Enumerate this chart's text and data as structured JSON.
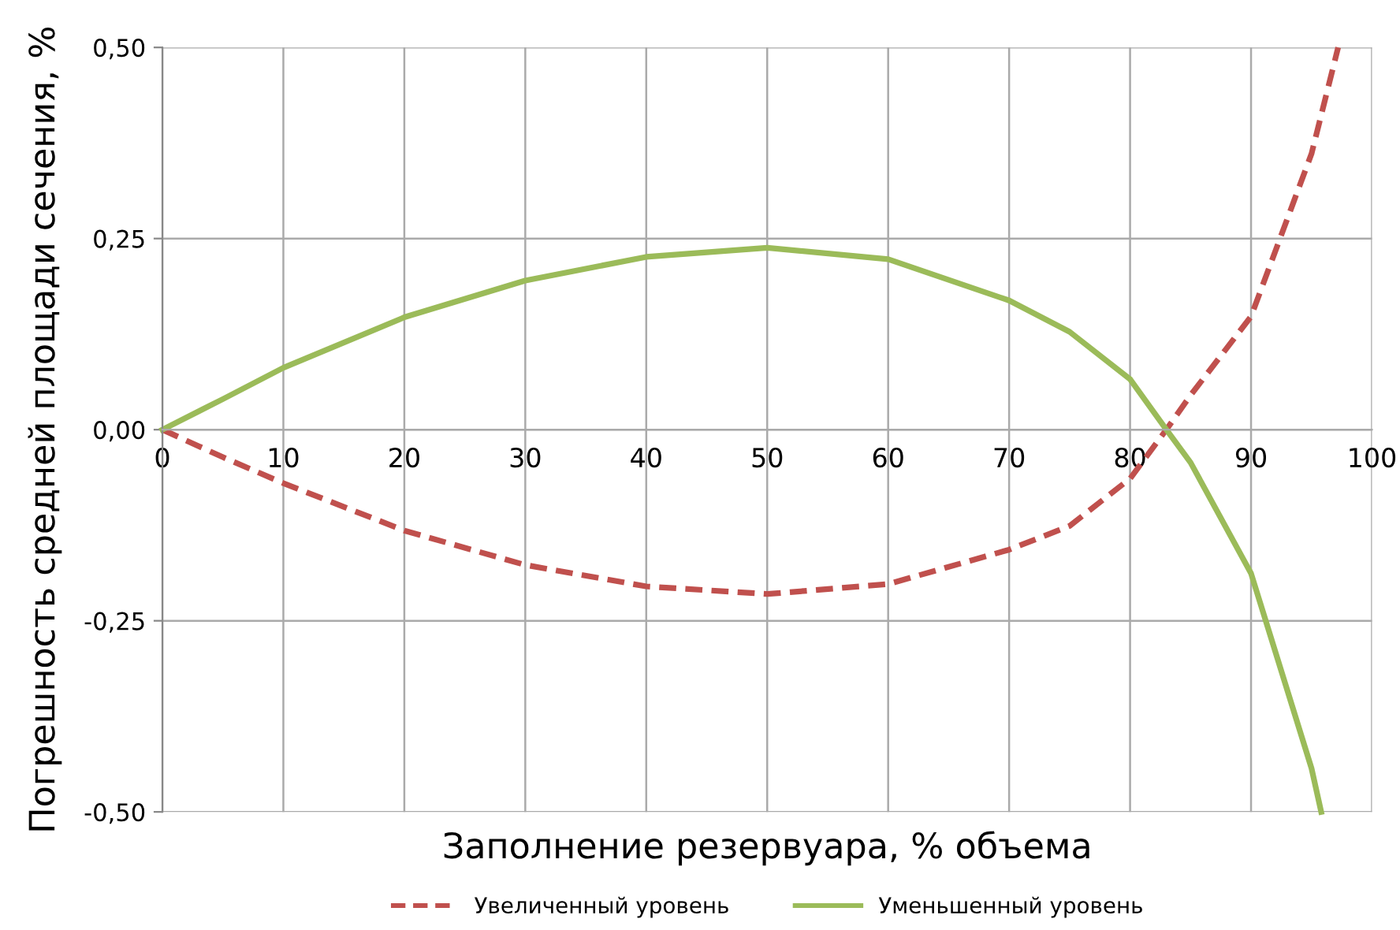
{
  "chart_data": {
    "type": "line",
    "xlabel": "Заполнение резервуара, % объема",
    "ylabel": "Погрешность средней площади сечения, %",
    "xlim": [
      0,
      100
    ],
    "xticks": [
      0,
      10,
      20,
      30,
      40,
      50,
      60,
      70,
      80,
      90,
      100
    ],
    "ylim": [
      -0.5,
      0.5
    ],
    "yticks": [
      {
        "value": -0.5,
        "label": "-0,50"
      },
      {
        "value": -0.25,
        "label": "-0,25"
      },
      {
        "value": 0,
        "label": "0,00"
      },
      {
        "value": 0.25,
        "label": "0,25"
      },
      {
        "value": 0.5,
        "label": "0,50"
      }
    ],
    "grid": true,
    "legend": "bottom",
    "marker": "none",
    "series": [
      {
        "name": "Увеличенный уровень",
        "color": "#c0504d",
        "line_style": "dashed",
        "x": [
          0,
          5,
          10,
          20,
          30,
          40,
          50,
          60,
          70,
          75,
          80,
          83,
          85,
          90,
          95,
          97.2
        ],
        "values": [
          0,
          -0.036,
          -0.07,
          -0.132,
          -0.177,
          -0.205,
          -0.215,
          -0.202,
          -0.157,
          -0.126,
          -0.064,
          0,
          0.045,
          0.148,
          0.361,
          0.5
        ]
      },
      {
        "name": "Уменьшенный уровень",
        "color": "#9bbb59",
        "line_style": "solid",
        "x": [
          0,
          5,
          10,
          20,
          30,
          40,
          50,
          60,
          70,
          75,
          80,
          83,
          85,
          90,
          95,
          95.8
        ],
        "values": [
          0,
          0.04,
          0.081,
          0.147,
          0.195,
          0.226,
          0.238,
          0.223,
          0.169,
          0.128,
          0.066,
          0,
          -0.043,
          -0.188,
          -0.443,
          -0.5
        ]
      }
    ]
  }
}
